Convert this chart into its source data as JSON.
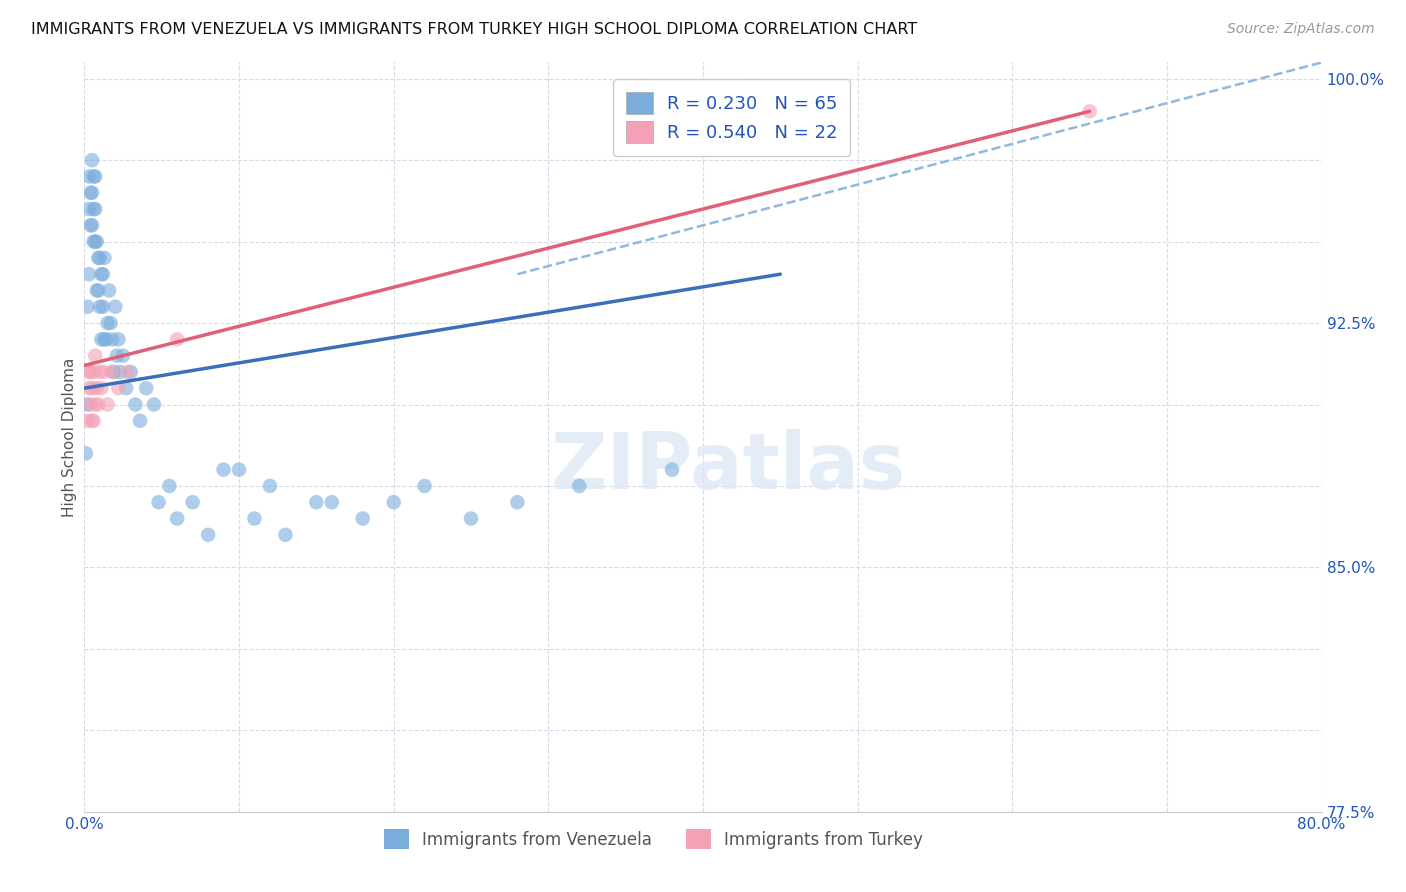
{
  "title": "IMMIGRANTS FROM VENEZUELA VS IMMIGRANTS FROM TURKEY HIGH SCHOOL DIPLOMA CORRELATION CHART",
  "source": "Source: ZipAtlas.com",
  "ylabel": "High School Diploma",
  "xlim": [
    0.0,
    0.8
  ],
  "ylim": [
    0.775,
    1.005
  ],
  "blue_color": "#7aaddc",
  "pink_color": "#f4a0b5",
  "blue_line_color": "#3b6fba",
  "pink_line_color": "#e0607a",
  "blue_dashed_color": "#90b8e0",
  "background_color": "#ffffff",
  "grid_color": "#d5dce8",
  "venezuela_x": [
    0.001,
    0.002,
    0.002,
    0.003,
    0.003,
    0.003,
    0.004,
    0.004,
    0.005,
    0.005,
    0.005,
    0.006,
    0.006,
    0.006,
    0.007,
    0.007,
    0.007,
    0.008,
    0.008,
    0.009,
    0.009,
    0.01,
    0.01,
    0.011,
    0.011,
    0.012,
    0.012,
    0.013,
    0.013,
    0.014,
    0.015,
    0.016,
    0.017,
    0.018,
    0.019,
    0.02,
    0.021,
    0.022,
    0.023,
    0.025,
    0.027,
    0.03,
    0.033,
    0.036,
    0.04,
    0.045,
    0.048,
    0.055,
    0.06,
    0.07,
    0.08,
    0.09,
    0.1,
    0.12,
    0.15,
    0.18,
    0.22,
    0.28,
    0.32,
    0.38,
    0.2,
    0.25,
    0.16,
    0.13,
    0.11
  ],
  "venezuela_y": [
    0.885,
    0.9,
    0.93,
    0.96,
    0.97,
    0.94,
    0.955,
    0.965,
    0.965,
    0.955,
    0.975,
    0.97,
    0.96,
    0.95,
    0.97,
    0.96,
    0.95,
    0.95,
    0.935,
    0.945,
    0.935,
    0.93,
    0.945,
    0.94,
    0.92,
    0.94,
    0.93,
    0.945,
    0.92,
    0.92,
    0.925,
    0.935,
    0.925,
    0.92,
    0.91,
    0.93,
    0.915,
    0.92,
    0.91,
    0.915,
    0.905,
    0.91,
    0.9,
    0.895,
    0.905,
    0.9,
    0.87,
    0.875,
    0.865,
    0.87,
    0.86,
    0.88,
    0.88,
    0.875,
    0.87,
    0.865,
    0.875,
    0.87,
    0.875,
    0.88,
    0.87,
    0.865,
    0.87,
    0.86,
    0.865
  ],
  "turkey_x": [
    0.002,
    0.003,
    0.003,
    0.004,
    0.004,
    0.005,
    0.005,
    0.006,
    0.006,
    0.007,
    0.007,
    0.008,
    0.009,
    0.01,
    0.011,
    0.013,
    0.015,
    0.018,
    0.022,
    0.028,
    0.06,
    0.65
  ],
  "turkey_y": [
    0.895,
    0.905,
    0.91,
    0.9,
    0.91,
    0.895,
    0.905,
    0.895,
    0.91,
    0.9,
    0.915,
    0.905,
    0.9,
    0.91,
    0.905,
    0.91,
    0.9,
    0.91,
    0.905,
    0.91,
    0.92,
    0.99
  ],
  "blue_line_x0": 0.0,
  "blue_line_y0": 0.905,
  "blue_line_x1": 0.45,
  "blue_line_y1": 0.94,
  "pink_line_x0": 0.0,
  "pink_line_y0": 0.912,
  "pink_line_x1": 0.65,
  "pink_line_y1": 0.99,
  "dash_line_x0": 0.28,
  "dash_line_y0": 0.94,
  "dash_line_x1": 0.8,
  "dash_line_y1": 1.005
}
